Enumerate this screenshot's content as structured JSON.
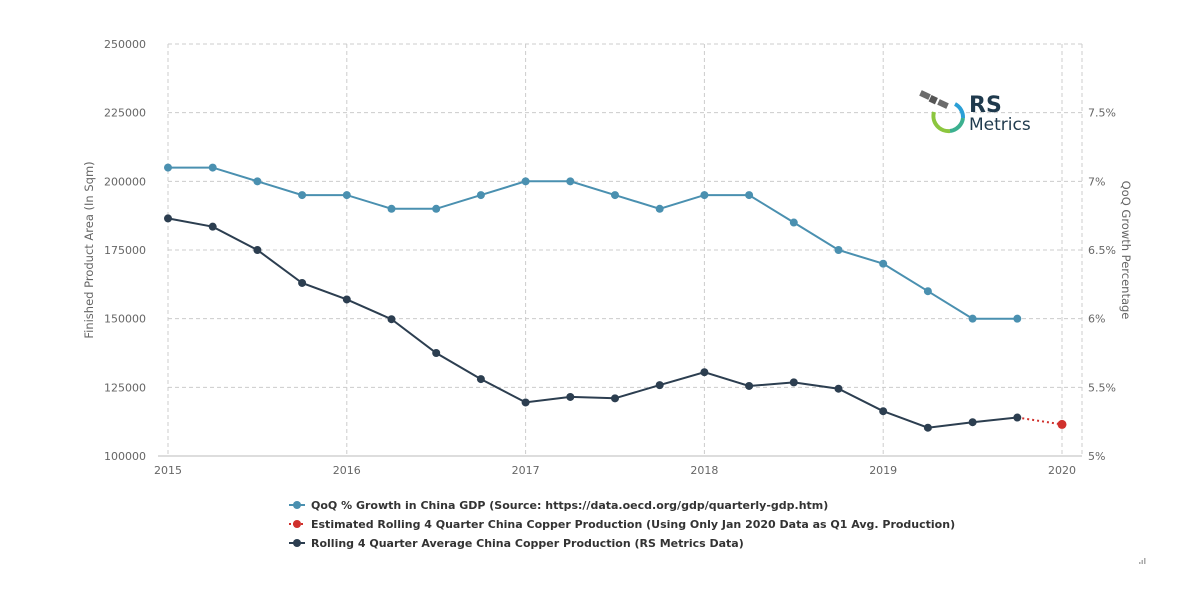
{
  "chart_data": {
    "type": "line",
    "title": "",
    "x_ticks": [
      "2015",
      "2016",
      "2017",
      "2018",
      "2019",
      "2020"
    ],
    "xlim": [
      2015,
      2020
    ],
    "y_left": {
      "label": "Finished Product Area (In Sqm)",
      "ticks": [
        "100000",
        "125000",
        "150000",
        "175000",
        "200000",
        "225000",
        "250000"
      ],
      "ylim": [
        100000,
        250000
      ]
    },
    "y_right": {
      "label": "QoQ Growth Percentage",
      "ticks": [
        "5%",
        "5.5%",
        "6%",
        "6.5%",
        "7%",
        "7.5%"
      ],
      "ylim": [
        5,
        8
      ]
    },
    "grid": true,
    "legend_position": "bottom",
    "series": [
      {
        "name": "QoQ % Growth in China GDP (Source: https://data.oecd.org/gdp/quarterly-gdp.htm)",
        "axis": "right",
        "color": "#4a90b0",
        "style": "solid",
        "x": [
          2015.0,
          2015.25,
          2015.5,
          2015.75,
          2016.0,
          2016.25,
          2016.5,
          2016.75,
          2017.0,
          2017.25,
          2017.5,
          2017.75,
          2018.0,
          2018.25,
          2018.5,
          2018.75,
          2019.0,
          2019.25,
          2019.5,
          2019.75
        ],
        "values": [
          7.1,
          7.1,
          7.0,
          6.9,
          6.9,
          6.8,
          6.8,
          6.9,
          7.0,
          7.0,
          6.9,
          6.8,
          6.9,
          6.9,
          6.7,
          6.5,
          6.4,
          6.2,
          6.0,
          6.0
        ]
      },
      {
        "name": "Estimated Rolling 4 Quarter China Copper Production (Using Only Jan 2020 Data as Q1 Avg. Production)",
        "axis": "left",
        "color": "#d0312d",
        "style": "dotted",
        "x": [
          2019.75,
          2020.0
        ],
        "values": [
          114000,
          111500
        ]
      },
      {
        "name": "Rolling 4 Quarter Average China Copper Production (RS Metrics Data)",
        "axis": "left",
        "color": "#2c3e50",
        "style": "solid",
        "x": [
          2015.0,
          2015.25,
          2015.5,
          2015.75,
          2016.0,
          2016.25,
          2016.5,
          2016.75,
          2017.0,
          2017.25,
          2017.5,
          2017.75,
          2018.0,
          2018.25,
          2018.5,
          2018.75,
          2019.0,
          2019.25,
          2019.5,
          2019.75
        ],
        "values": [
          186500,
          183500,
          175000,
          163000,
          157000,
          149800,
          137500,
          128000,
          119500,
          121500,
          121000,
          125800,
          130500,
          125500,
          126800,
          124500,
          116300,
          110300,
          112300,
          114000
        ]
      }
    ]
  },
  "logo": {
    "line1": "RS",
    "line2": "Metrics",
    "colors": {
      "ring_green": "#8cc63f",
      "ring_blue": "#2a9fd6",
      "ring_teal": "#3bb08f",
      "satellite": "#6b6b6b"
    }
  },
  "corner_icon": "resize-grip-icon"
}
